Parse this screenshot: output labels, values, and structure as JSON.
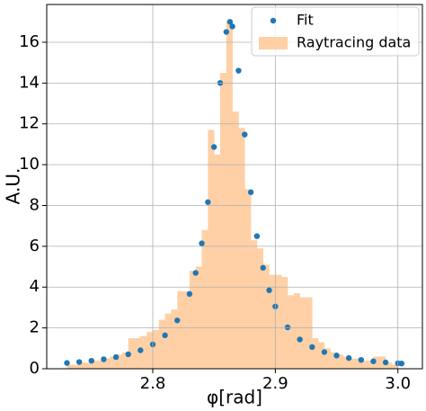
{
  "chart_data": {
    "type": "histogram",
    "xlabel": "φ[rad]",
    "ylabel": "A.U.",
    "xlim": [
      2.7135,
      3.02
    ],
    "ylim": [
      0,
      17.85
    ],
    "xticks": [
      2.8,
      2.9,
      {
        "value": 3,
        "label": "3.0"
      }
    ],
    "yticks": [
      0,
      2,
      4,
      6,
      8,
      10,
      12,
      14,
      16
    ],
    "grid": true,
    "legend": "upper right",
    "series": [
      {
        "name": "Fit",
        "type": "scatter",
        "color": "#1f77b4",
        "x": [
          2.73,
          2.74,
          2.75,
          2.76,
          2.77,
          2.78,
          2.79,
          2.8,
          2.81,
          2.82,
          2.83,
          2.835,
          2.84,
          2.845,
          2.85,
          2.855,
          2.86,
          2.863,
          2.865,
          2.87,
          2.875,
          2.88,
          2.885,
          2.89,
          2.895,
          2.9,
          2.91,
          2.92,
          2.93,
          2.94,
          2.95,
          2.96,
          2.97,
          2.98,
          2.99,
          3.0,
          3.003
        ],
        "values": [
          0.283,
          0.33,
          0.389,
          0.466,
          0.569,
          0.708,
          0.904,
          1.192,
          1.637,
          2.368,
          3.665,
          4.696,
          6.144,
          8.163,
          10.865,
          14.005,
          16.504,
          17,
          16.776,
          14.608,
          11.478,
          8.649,
          6.495,
          4.948,
          3.845,
          3.05,
          2.028,
          1.434,
          1.0625,
          0.817,
          0.647,
          0.524,
          0.433,
          0.364,
          0.31,
          0.267,
          0.256
        ]
      },
      {
        "name": "Raytracing data",
        "type": "histogram",
        "color": "#ffd0a6",
        "bins": [
          2.73,
          2.735,
          2.74,
          2.745,
          2.75,
          2.755,
          2.76,
          2.765,
          2.77,
          2.775,
          2.78,
          2.785,
          2.79,
          2.795,
          2.8,
          2.805,
          2.81,
          2.815,
          2.82,
          2.825,
          2.83,
          2.835,
          2.84,
          2.845,
          2.85,
          2.855,
          2.86,
          2.865,
          2.87,
          2.875,
          2.88,
          2.885,
          2.89,
          2.895,
          2.9,
          2.905,
          2.91,
          2.915,
          2.92,
          2.925,
          2.93,
          2.935,
          2.94,
          2.945,
          2.95,
          2.955,
          2.96,
          2.965,
          2.97,
          2.975,
          2.98,
          2.985,
          2.99,
          2.995,
          3.0
        ],
        "counts": [
          0.2,
          0.2,
          0.3,
          0.3,
          0.4,
          0.4,
          0.5,
          0.6,
          0.7,
          0.8,
          1.5,
          1.5,
          1.6,
          1.8,
          1.9,
          2.4,
          2.7,
          2.9,
          3.8,
          3.8,
          4.8,
          5.0,
          6.8,
          11.7,
          10.5,
          14.5,
          17.0,
          12.6,
          11.8,
          8.8,
          6.3,
          5.9,
          5.1,
          4.6,
          4.6,
          4.5,
          3.6,
          3.7,
          3.5,
          3.5,
          1.5,
          1.3,
          1.0,
          0.8,
          0.7,
          0.6,
          0.5,
          0.5,
          0.4,
          0.4,
          0.6,
          0.6,
          0.3,
          0.2
        ]
      }
    ]
  }
}
